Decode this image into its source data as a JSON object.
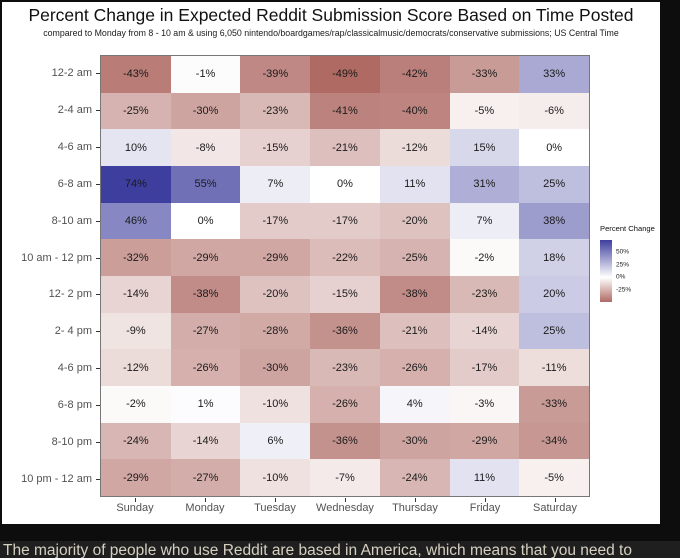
{
  "header": {
    "title": "Percent Change in Expected Reddit Submission Score Based on Time Posted",
    "subtitle": "compared to Monday from 8 - 10 am & using 6,050 nintendo/boardgames/rap/classicalmusic/democrats/conservative submissions; US Central Time"
  },
  "chart_data": {
    "type": "heatmap",
    "x_categories": [
      "Sunday",
      "Monday",
      "Tuesday",
      "Wednesday",
      "Thursday",
      "Friday",
      "Saturday"
    ],
    "y_categories": [
      "12-2 am",
      "2-4 am",
      "4-6 am",
      "6-8 am",
      "8-10 am",
      "10 am - 12 pm",
      "12- 2 pm",
      "2- 4 pm",
      "4-6 pm",
      "6-8 pm",
      "8-10 pm",
      "10 pm - 12 am"
    ],
    "values": [
      [
        -43,
        -1,
        -39,
        -49,
        -42,
        -33,
        33
      ],
      [
        -25,
        -30,
        -23,
        -41,
        -40,
        -5,
        -6
      ],
      [
        10,
        -8,
        -15,
        -21,
        -12,
        15,
        0
      ],
      [
        74,
        55,
        7,
        0,
        11,
        31,
        25
      ],
      [
        46,
        0,
        -17,
        -17,
        -20,
        7,
        38
      ],
      [
        -32,
        -29,
        -29,
        -22,
        -25,
        -2,
        18
      ],
      [
        -14,
        -38,
        -20,
        -15,
        -38,
        -23,
        20
      ],
      [
        -9,
        -27,
        -28,
        -36,
        -21,
        -14,
        25
      ],
      [
        -12,
        -26,
        -30,
        -23,
        -26,
        -17,
        -11
      ],
      [
        -2,
        1,
        -10,
        -26,
        4,
        -3,
        -33
      ],
      [
        -24,
        -14,
        6,
        -36,
        -30,
        -29,
        -34
      ],
      [
        -29,
        -27,
        -10,
        -7,
        -24,
        11,
        -5
      ]
    ],
    "cell_label_suffix": "%",
    "legend": {
      "title": "Percent Change",
      "tick_labels": [
        "50%",
        "25%",
        "0%",
        "-25%"
      ],
      "tick_values": [
        50,
        25,
        0,
        -25
      ],
      "position": "right"
    },
    "color_scale": {
      "domain_min": -49,
      "domain_max": 74,
      "negative_color": "#AF6A64",
      "midpoint_color": "#FFFFFF",
      "positive_color": "#3E3E9E"
    },
    "grid": false
  },
  "caption": {
    "text": "The majority of people who use Reddit are based in America, which means that you need to"
  }
}
